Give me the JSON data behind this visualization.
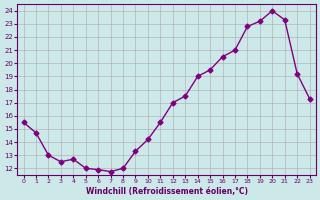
{
  "x": [
    0,
    1,
    2,
    3,
    4,
    5,
    6,
    7,
    8,
    9,
    10,
    11,
    12,
    13,
    14,
    15,
    16,
    17,
    18,
    19,
    20,
    21,
    22,
    23
  ],
  "y": [
    15.5,
    14.7,
    13.0,
    12.5,
    12.7,
    12.0,
    11.9,
    11.75,
    12.0,
    13.3,
    14.2,
    15.5,
    17.0,
    17.5,
    19.0,
    19.5,
    20.5,
    21.0,
    22.8,
    23.2,
    24.0,
    23.3,
    19.2,
    17.3
  ],
  "xlabel": "Windchill (Refroidissement éolien,°C)",
  "xlim": [
    -0.5,
    23.5
  ],
  "ylim": [
    11.5,
    24.5
  ],
  "yticks": [
    12,
    13,
    14,
    15,
    16,
    17,
    18,
    19,
    20,
    21,
    22,
    23,
    24
  ],
  "xticks": [
    0,
    1,
    2,
    3,
    4,
    5,
    6,
    7,
    8,
    9,
    10,
    11,
    12,
    13,
    14,
    15,
    16,
    17,
    18,
    19,
    20,
    21,
    22,
    23
  ],
  "line_color": "#800080",
  "marker_color": "#800080",
  "bg_color": "#cce8e8",
  "grid_color": "#aaaaaa"
}
